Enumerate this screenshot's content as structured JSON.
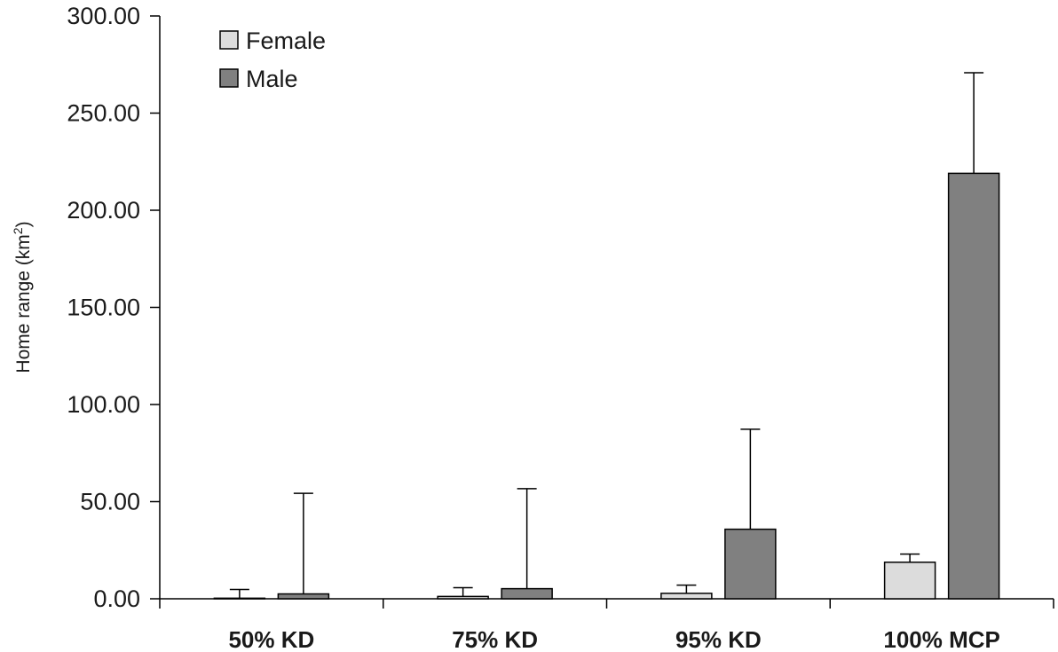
{
  "chart_data": {
    "type": "bar",
    "title": "",
    "xlabel": "",
    "ylabel": "Home range (km",
    "ylabel_sup": "2",
    "ylabel_close": ")",
    "ylim": [
      0,
      300
    ],
    "yticks": [
      0,
      50,
      100,
      150,
      200,
      250,
      300
    ],
    "ytick_labels": [
      "0.00",
      "50.00",
      "100.00",
      "150.00",
      "200.00",
      "250.00",
      "300.00"
    ],
    "categories": [
      "50% KD",
      "75% KD",
      "95% KD",
      "100% MCP"
    ],
    "series": [
      {
        "name": "Female",
        "color": "#dcdcdc",
        "values": [
          0.3,
          1.2,
          2.8,
          18.8
        ],
        "error": [
          4.5,
          4.5,
          4.2,
          4.2
        ]
      },
      {
        "name": "Male",
        "color": "#808080",
        "values": [
          2.5,
          5.2,
          35.8,
          219.0
        ],
        "error": [
          51.8,
          51.5,
          51.5,
          51.8
        ]
      }
    ],
    "legend_position": "top-left",
    "grid": false
  }
}
